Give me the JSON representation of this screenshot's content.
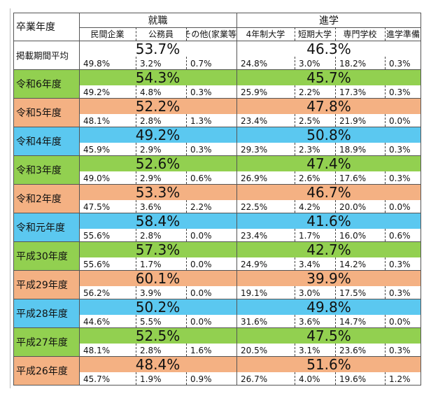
{
  "header": {
    "year_label": "卒業年度",
    "group1": "就職",
    "group2": "進学",
    "subcolumns": [
      "民間企業",
      "公務員",
      "その他(家業等)",
      "4年制大学",
      "短期大学",
      "専門学校",
      "進学準備"
    ]
  },
  "colors": {
    "green": "#92d050",
    "orange": "#f4b183",
    "blue": "#5bc8f0",
    "white": "#ffffff"
  },
  "rows": [
    {
      "label": "掲載期間平均",
      "color": "white",
      "employment": "53.7%",
      "further": "46.3%",
      "values": [
        "49.8%",
        "3.2%",
        "0.7%",
        "24.8%",
        "3.0%",
        "18.2%",
        "0.3%"
      ]
    },
    {
      "label": "令和6年度",
      "color": "green",
      "employment": "54.3%",
      "further": "45.7%",
      "values": [
        "49.2%",
        "4.8%",
        "0.3%",
        "25.9%",
        "2.2%",
        "17.3%",
        "0.3%"
      ]
    },
    {
      "label": "令和5年度",
      "color": "orange",
      "employment": "52.2%",
      "further": "47.8%",
      "values": [
        "48.1%",
        "2.8%",
        "1.3%",
        "23.4%",
        "2.5%",
        "21.9%",
        "0.0%"
      ]
    },
    {
      "label": "令和4年度",
      "color": "blue",
      "employment": "49.2%",
      "further": "50.8%",
      "values": [
        "45.9%",
        "2.9%",
        "0.3%",
        "29.3%",
        "2.3%",
        "18.9%",
        "0.3%"
      ]
    },
    {
      "label": "令和3年度",
      "color": "green",
      "employment": "52.6%",
      "further": "47.4%",
      "values": [
        "49.0%",
        "2.9%",
        "0.6%",
        "26.9%",
        "2.6%",
        "17.6%",
        "0.3%"
      ]
    },
    {
      "label": "令和2年度",
      "color": "orange",
      "employment": "53.3%",
      "further": "46.7%",
      "values": [
        "47.5%",
        "3.6%",
        "2.2%",
        "22.5%",
        "4.2%",
        "20.0%",
        "0.0%"
      ]
    },
    {
      "label": "令和元年度",
      "color": "blue",
      "employment": "58.4%",
      "further": "41.6%",
      "values": [
        "55.6%",
        "2.8%",
        "0.0%",
        "23.4%",
        "1.7%",
        "16.0%",
        "0.6%"
      ]
    },
    {
      "label": "平成30年度",
      "color": "green",
      "employment": "57.3%",
      "further": "42.7%",
      "values": [
        "55.6%",
        "1.7%",
        "0.0%",
        "24.9%",
        "3.4%",
        "14.2%",
        "0.3%"
      ]
    },
    {
      "label": "平成29年度",
      "color": "orange",
      "employment": "60.1%",
      "further": "39.9%",
      "values": [
        "56.2%",
        "3.9%",
        "0.0%",
        "19.1%",
        "3.0%",
        "17.5%",
        "0.3%"
      ]
    },
    {
      "label": "平成28年度",
      "color": "blue",
      "employment": "50.2%",
      "further": "49.8%",
      "values": [
        "44.6%",
        "5.5%",
        "0.0%",
        "31.6%",
        "3.6%",
        "14.7%",
        "0.0%"
      ]
    },
    {
      "label": "平成27年度",
      "color": "green",
      "employment": "52.5%",
      "further": "47.5%",
      "values": [
        "48.1%",
        "2.8%",
        "1.6%",
        "20.5%",
        "3.1%",
        "23.6%",
        "0.3%"
      ]
    },
    {
      "label": "平成26年度",
      "color": "orange",
      "employment": "48.4%",
      "further": "51.6%",
      "values": [
        "45.7%",
        "1.9%",
        "0.9%",
        "26.7%",
        "4.0%",
        "19.6%",
        "1.2%"
      ]
    }
  ]
}
